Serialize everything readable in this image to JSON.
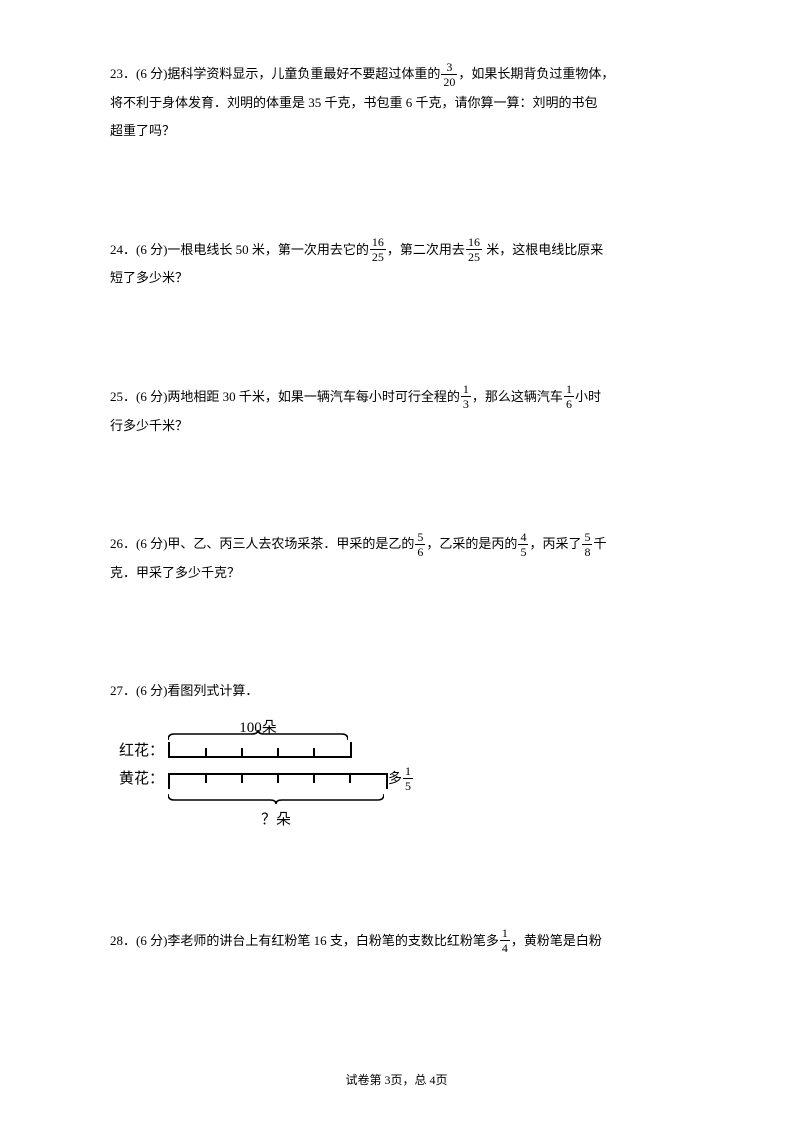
{
  "q23": {
    "prefix": "23．(6 分)据科学资料显示，儿童负重最好不要超过体重的",
    "frac": {
      "num": "3",
      "den": "20"
    },
    "after1": "，如果长期背负过重物体，",
    "line2": "将不利于身体发育．刘明的体重是 35 千克，书包重 6 千克，请你算一算：刘明的书包",
    "line3": "超重了吗？"
  },
  "q24": {
    "prefix": "24．(6 分)一根电线长 50 米，第一次用去它的",
    "frac1": {
      "num": "16",
      "den": "25"
    },
    "mid": "，第二次用去",
    "frac2": {
      "num": "16",
      "den": "25"
    },
    "after": " 米，这根电线比原来",
    "line2": "短了多少米？"
  },
  "q25": {
    "prefix": "25．(6 分)两地相距 30 千米，如果一辆汽车每小时可行全程的",
    "frac1": {
      "num": "1",
      "den": "3"
    },
    "mid": "，那么这辆汽车",
    "frac2": {
      "num": "1",
      "den": "6"
    },
    "after": "小时",
    "line2": "行多少千米？"
  },
  "q26": {
    "prefix": "26．(6 分)甲、乙、丙三人去农场采茶．甲采的是乙的",
    "frac1": {
      "num": "5",
      "den": "6"
    },
    "mid1": "，乙采的是丙的",
    "frac2": {
      "num": "4",
      "den": "5"
    },
    "mid2": "，丙采了",
    "frac3": {
      "num": "5",
      "den": "8"
    },
    "after": "千",
    "line2": "克．甲采了多少千克？"
  },
  "q27": {
    "heading": "27．(6 分)看图列式计算．",
    "diagram": {
      "top_label": "100朵",
      "red_label": "红花：",
      "yellow_label": "黄花：",
      "more_label": "多",
      "more_frac": {
        "num": "1",
        "den": "5"
      },
      "bottom_label": "？朵",
      "red_bar_width": 180,
      "yellow_bar_width": 216,
      "red_ticks": 5,
      "yellow_ticks": 6
    }
  },
  "q28": {
    "prefix": "28．(6 分)李老师的讲台上有红粉笔 16 支，白粉笔的支数比红粉笔多",
    "frac": {
      "num": "1",
      "den": "4"
    },
    "after": "，黄粉笔是白粉"
  },
  "footer": "试卷第 3页，总 4页"
}
